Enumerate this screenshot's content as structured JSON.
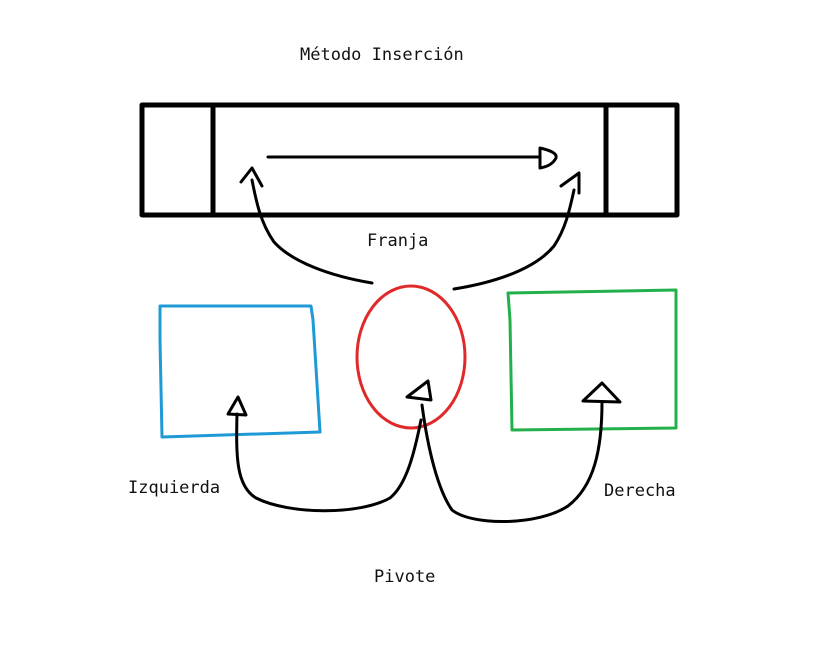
{
  "title": "Método Inserción",
  "labels": {
    "strip": "Franja",
    "left": "Izquierda",
    "right": "Derecha",
    "pivot": "Pivote"
  },
  "colors": {
    "ink": "#000000",
    "left_box": "#1e9ad6",
    "pivot_ellipse": "#e02a2a",
    "right_box": "#22b04b"
  }
}
